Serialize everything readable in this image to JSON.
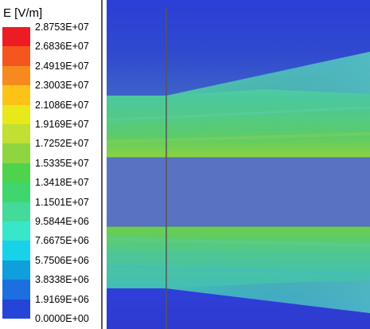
{
  "legend": {
    "title": "E [V/m]",
    "ticks": [
      "2.8753E+07",
      "2.6836E+07",
      "2.4919E+07",
      "2.3003E+07",
      "2.1086E+07",
      "1.9169E+07",
      "1.7252E+07",
      "1.5335E+07",
      "1.3418E+07",
      "1.1501E+07",
      "9.5844E+06",
      "7.6675E+06",
      "5.7506E+06",
      "3.8338E+06",
      "1.9169E+06",
      "0.0000E+00"
    ],
    "colors": [
      "#ed1c24",
      "#f5561e",
      "#f68a1f",
      "#fcc217",
      "#e8e81a",
      "#c0e033",
      "#8fd541",
      "#4fd34c",
      "#3fd66e",
      "#44da9a",
      "#38e6c9",
      "#1ad1ea",
      "#0e9fdc",
      "#1d6ede",
      "#2345d8"
    ]
  },
  "field_colors": {
    "background_blue": "#3d4fc9",
    "upper_band": "#4fc7a9",
    "dielectric": "#5973c2",
    "lower_band": "#5bcf93",
    "taper_blue": "#2f3fd2",
    "edge_cyan": "#4fa6c6"
  }
}
